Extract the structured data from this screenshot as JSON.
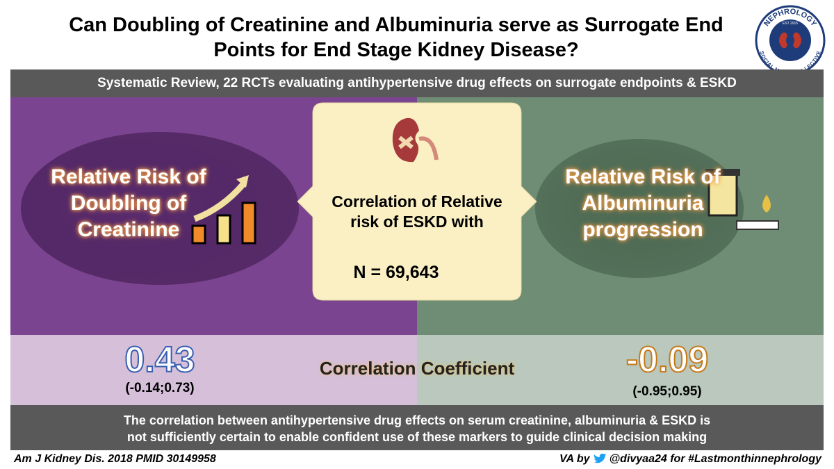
{
  "header": {
    "title": "Can Doubling of Creatinine and Albuminuria serve as Surrogate End Points for End Stage Kidney Disease?",
    "logo": {
      "top": "NEPHROLOGY",
      "bottom": "SOCIAL MEDIA COLLECTIVE",
      "est": "EST 2015"
    }
  },
  "study": "Systematic Review, 22 RCTs evaluating antihypertensive drug effects on surrogate endpoints & ESKD",
  "left": {
    "label": "Relative Risk of Doubling of Creatinine",
    "coefficient": "0.43",
    "interval": "(-0.14;0.73)"
  },
  "center": {
    "label": "Correlation of Relative risk of ESKD with",
    "n": "N = 69,643",
    "metric": "Correlation Coefficient"
  },
  "right": {
    "label": "Relative Risk of Albuminuria progression",
    "coefficient": "-0.09",
    "interval": "(-0.95;0.95)"
  },
  "conclusion": "The correlation between antihypertensive drug effects on serum creatinine, albuminuria & ESKD is not sufficiently certain to enable confident use of these markers to guide clinical decision making",
  "footer": {
    "citation": "Am J Kidney Dis. 2018 PMID 30149958",
    "credit_prefix": "VA by",
    "credit": "@divyaa24 for #Lastmonthinnephrology"
  }
}
